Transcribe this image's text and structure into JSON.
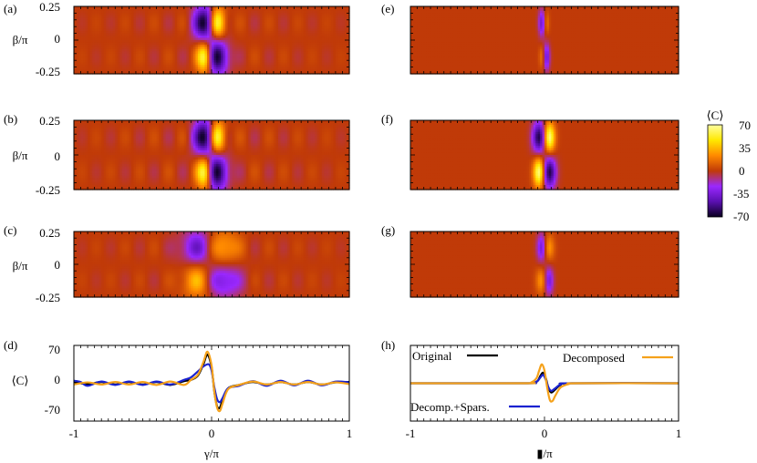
{
  "colors": {
    "background_map": "#c03a08",
    "colormap_stops": [
      "#0a0020",
      "#5a10b0",
      "#9a28ff",
      "#c03a08",
      "#ff8a00",
      "#ffe800",
      "#ffffa0"
    ],
    "original": "#000000",
    "decomposed": "#f5a21b",
    "decomp_spars": "#1a22d0"
  },
  "colorbar": {
    "label": "⟨C⟩",
    "ticks": [
      "70",
      "35",
      "0",
      "-35",
      "-70"
    ]
  },
  "chart_data": [
    {
      "type": "heatmap",
      "panel": "(a)",
      "ylabel": "β/π",
      "yticks": [
        "0.25",
        "0",
        "-0.25"
      ],
      "ylim": [
        -0.25,
        0.25
      ],
      "xlim": [
        -1,
        1
      ],
      "value_range": [
        -70,
        70
      ],
      "ripple": 0.12,
      "features": [
        {
          "x": -0.05,
          "y": 0.125,
          "value": -70,
          "sx": 0.055,
          "sy": 0.09
        },
        {
          "x": 0.04,
          "y": 0.125,
          "value": 70,
          "sx": 0.04,
          "sy": 0.08
        },
        {
          "x": -0.05,
          "y": -0.125,
          "value": 70,
          "sx": 0.04,
          "sy": 0.08
        },
        {
          "x": 0.04,
          "y": -0.125,
          "value": -70,
          "sx": 0.055,
          "sy": 0.09
        }
      ]
    },
    {
      "type": "heatmap",
      "panel": "(b)",
      "ylabel": "β/π",
      "yticks": [
        "0.25",
        "0",
        "-0.25"
      ],
      "ylim": [
        -0.25,
        0.25
      ],
      "xlim": [
        -1,
        1
      ],
      "value_range": [
        -70,
        70
      ],
      "ripple": 0.15,
      "features": [
        {
          "x": -0.05,
          "y": 0.125,
          "value": -70,
          "sx": 0.055,
          "sy": 0.09
        },
        {
          "x": 0.04,
          "y": 0.125,
          "value": 70,
          "sx": 0.04,
          "sy": 0.08
        },
        {
          "x": -0.05,
          "y": -0.125,
          "value": 70,
          "sx": 0.04,
          "sy": 0.08
        },
        {
          "x": 0.04,
          "y": -0.125,
          "value": -70,
          "sx": 0.055,
          "sy": 0.09
        }
      ]
    },
    {
      "type": "heatmap",
      "panel": "(c)",
      "ylabel": "β/π",
      "yticks": [
        "0.25",
        "0",
        "-0.25"
      ],
      "ylim": [
        -0.25,
        0.25
      ],
      "xlim": [
        -1,
        1
      ],
      "value_range": [
        -70,
        70
      ],
      "ripple": 0.12,
      "features": [
        {
          "x": -0.1,
          "y": 0.125,
          "value": -38,
          "sx": 0.09,
          "sy": 0.09
        },
        {
          "x": 0.08,
          "y": 0.125,
          "value": 35,
          "sx": 0.08,
          "sy": 0.09
        },
        {
          "x": -0.1,
          "y": -0.125,
          "value": 35,
          "sx": 0.08,
          "sy": 0.09
        },
        {
          "x": 0.08,
          "y": -0.125,
          "value": -38,
          "sx": 0.09,
          "sy": 0.09
        }
      ]
    },
    {
      "type": "heatmap",
      "panel": "(e)",
      "xlim": [
        -1,
        1
      ],
      "ylim": [
        -0.25,
        0.25
      ],
      "value_range": [
        -70,
        70
      ],
      "ripple": 0.0,
      "features": [
        {
          "x": -0.02,
          "y": 0.125,
          "value": -38,
          "sx": 0.018,
          "sy": 0.07
        },
        {
          "x": 0.015,
          "y": 0.125,
          "value": 18,
          "sx": 0.015,
          "sy": 0.06
        },
        {
          "x": -0.02,
          "y": -0.125,
          "value": 18,
          "sx": 0.015,
          "sy": 0.06
        },
        {
          "x": 0.015,
          "y": -0.125,
          "value": -38,
          "sx": 0.018,
          "sy": 0.07
        }
      ]
    },
    {
      "type": "heatmap",
      "panel": "(f)",
      "xlim": [
        -1,
        1
      ],
      "ylim": [
        -0.25,
        0.25
      ],
      "value_range": [
        -70,
        70
      ],
      "ripple": 0.0,
      "features": [
        {
          "x": -0.04,
          "y": 0.125,
          "value": -65,
          "sx": 0.035,
          "sy": 0.08
        },
        {
          "x": 0.035,
          "y": 0.125,
          "value": 70,
          "sx": 0.03,
          "sy": 0.075
        },
        {
          "x": -0.04,
          "y": -0.125,
          "value": 70,
          "sx": 0.03,
          "sy": 0.075
        },
        {
          "x": 0.035,
          "y": -0.125,
          "value": -65,
          "sx": 0.035,
          "sy": 0.08
        }
      ]
    },
    {
      "type": "heatmap",
      "panel": "(g)",
      "xlim": [
        -1,
        1
      ],
      "ylim": [
        -0.25,
        0.25
      ],
      "value_range": [
        -70,
        70
      ],
      "ripple": 0.0,
      "features": [
        {
          "x": -0.02,
          "y": 0.125,
          "value": -40,
          "sx": 0.025,
          "sy": 0.075
        },
        {
          "x": 0.03,
          "y": 0.125,
          "value": 28,
          "sx": 0.03,
          "sy": 0.07
        },
        {
          "x": -0.02,
          "y": -0.125,
          "value": 28,
          "sx": 0.03,
          "sy": 0.07
        },
        {
          "x": 0.03,
          "y": -0.125,
          "value": -40,
          "sx": 0.025,
          "sy": 0.075
        }
      ]
    },
    {
      "type": "line",
      "panel": "(d)",
      "xlabel": "γ/π",
      "ylabel": "⟨C⟩",
      "xlim": [
        -1,
        1
      ],
      "ylim": [
        -90,
        90
      ],
      "xticks": [
        "-1",
        "0",
        "1"
      ],
      "yticks": [
        "70",
        "0",
        "-70"
      ],
      "series": [
        {
          "key": "original",
          "x": [
            -1,
            -0.9,
            -0.8,
            -0.7,
            -0.6,
            -0.5,
            -0.4,
            -0.3,
            -0.2,
            -0.15,
            -0.1,
            -0.06,
            -0.03,
            0,
            0.02,
            0.04,
            0.06,
            0.08,
            0.12,
            0.2,
            0.3,
            0.4,
            0.5,
            0.6,
            0.7,
            0.8,
            0.9,
            1
          ],
          "y": [
            3,
            -2,
            3,
            -3,
            3,
            -3,
            3,
            -4,
            5,
            8,
            18,
            45,
            68,
            38,
            -20,
            -55,
            -58,
            -40,
            -12,
            -4,
            3,
            -3,
            3,
            -3,
            3,
            -3,
            2,
            3
          ]
        },
        {
          "key": "decomposed",
          "x": [
            -1,
            -0.9,
            -0.8,
            -0.7,
            -0.6,
            -0.5,
            -0.4,
            -0.3,
            -0.2,
            -0.15,
            -0.1,
            -0.06,
            -0.03,
            0,
            0.02,
            0.04,
            0.06,
            0.08,
            0.12,
            0.2,
            0.3,
            0.4,
            0.5,
            0.6,
            0.7,
            0.8,
            0.9,
            1
          ],
          "y": [
            -3,
            2,
            -3,
            3,
            -3,
            3,
            -4,
            4,
            -4,
            8,
            20,
            50,
            75,
            42,
            -20,
            -58,
            -66,
            -48,
            -14,
            -4,
            4,
            -3,
            3,
            -3,
            3,
            -3,
            2,
            -2
          ]
        },
        {
          "key": "decomp_spars",
          "x": [
            -1,
            -0.95,
            -0.9,
            -0.8,
            -0.7,
            -0.6,
            -0.5,
            -0.4,
            -0.3,
            -0.2,
            -0.15,
            -0.1,
            -0.06,
            -0.02,
            0,
            0.02,
            0.04,
            0.06,
            0.08,
            0.12,
            0.2,
            0.3,
            0.4,
            0.5,
            0.6,
            0.7,
            0.8,
            0.9,
            1
          ],
          "y": [
            6,
            3,
            -6,
            4,
            -4,
            4,
            -4,
            4,
            -3,
            8,
            14,
            28,
            40,
            45,
            30,
            -10,
            -38,
            -45,
            -35,
            -12,
            -6,
            5,
            -6,
            6,
            -5,
            6,
            -5,
            4,
            2
          ]
        }
      ]
    },
    {
      "type": "line",
      "panel": "(h)",
      "xlabel": "▮/π",
      "xlim": [
        -1,
        1
      ],
      "ylim": [
        -90,
        90
      ],
      "xticks": [
        "-1",
        "0",
        "1"
      ],
      "series": [
        {
          "key": "original",
          "name": "Original",
          "x": [
            -1,
            -0.15,
            -0.08,
            -0.05,
            -0.03,
            -0.01,
            0.01,
            0.03,
            0.05,
            0.08,
            0.12,
            0.2,
            1
          ],
          "y": [
            0,
            0,
            1,
            6,
            18,
            25,
            12,
            -12,
            -22,
            -15,
            -4,
            0,
            0
          ]
        },
        {
          "key": "decomposed",
          "name": "Decomposed",
          "x": [
            -1,
            -0.15,
            -0.1,
            -0.06,
            -0.04,
            -0.02,
            0,
            0.02,
            0.04,
            0.06,
            0.08,
            0.12,
            0.18,
            0.25,
            1
          ],
          "y": [
            0,
            0,
            2,
            12,
            30,
            45,
            30,
            -10,
            -40,
            -42,
            -30,
            -10,
            -2,
            0,
            0
          ]
        },
        {
          "key": "decomp_spars",
          "name": "Decomp.+Spars.",
          "x": [
            -1,
            -0.15,
            -0.08,
            -0.05,
            -0.03,
            -0.01,
            0.01,
            0.03,
            0.05,
            0.08,
            0.12,
            0.2,
            1
          ],
          "y": [
            0,
            0,
            1,
            6,
            14,
            20,
            8,
            -10,
            -18,
            -12,
            -3,
            0,
            0
          ]
        }
      ]
    }
  ]
}
